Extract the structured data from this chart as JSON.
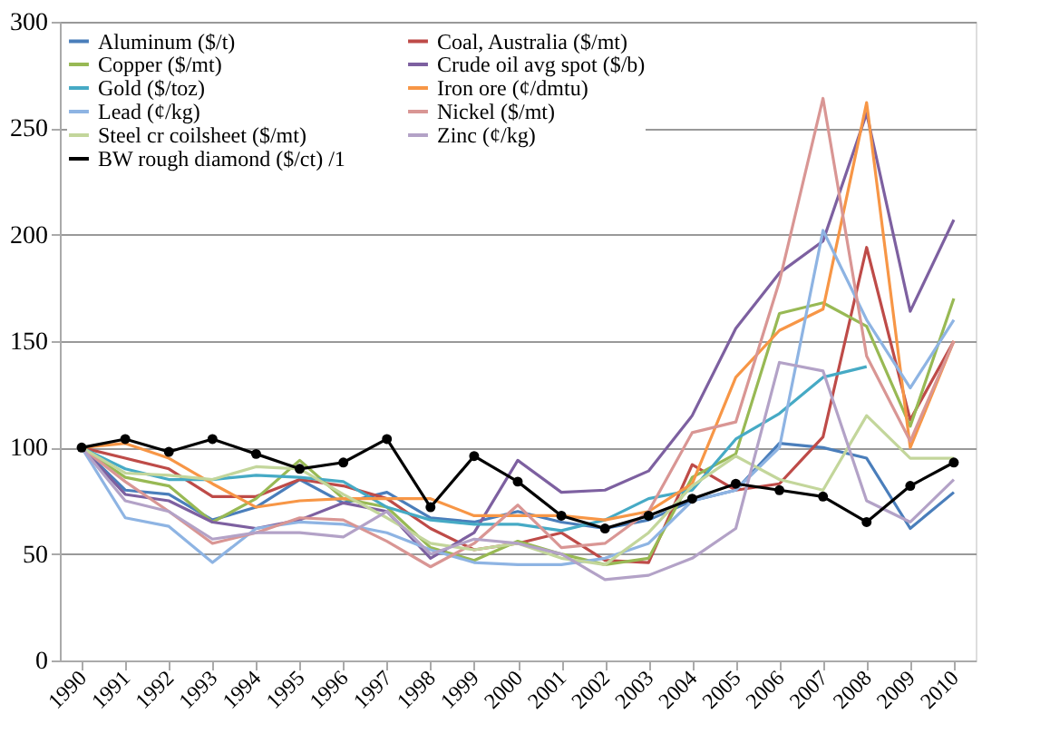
{
  "chart_data": {
    "type": "line",
    "categories": [
      "1990",
      "1991",
      "1992",
      "1993",
      "1994",
      "1995",
      "1996",
      "1997",
      "1998",
      "1999",
      "2000",
      "2001",
      "2002",
      "2003",
      "2004",
      "2005",
      "2006",
      "2007",
      "2008",
      "2009",
      "2010"
    ],
    "ylim": [
      0,
      300
    ],
    "yticks": [
      0,
      50,
      100,
      150,
      200,
      250,
      300
    ],
    "grid": "y",
    "legend": "top left",
    "line_style": "solid",
    "series": [
      {
        "name": "Aluminum ($/t)",
        "color": "#4a7ebb",
        "marker": "none",
        "values": [
          100,
          80,
          78,
          66,
          72,
          85,
          74,
          79,
          67,
          65,
          70,
          65,
          62,
          66,
          75,
          80,
          102,
          100,
          95,
          62,
          79
        ]
      },
      {
        "name": "Coal, Australia ($/mt)",
        "color": "#be4b48",
        "marker": "none",
        "values": [
          100,
          95,
          90,
          77,
          77,
          85,
          82,
          76,
          62,
          52,
          55,
          60,
          47,
          46,
          92,
          80,
          83,
          105,
          194,
          113,
          150
        ]
      },
      {
        "name": "Copper ($/mt)",
        "color": "#98b954",
        "marker": "none",
        "values": [
          100,
          86,
          82,
          65,
          76,
          94,
          76,
          72,
          53,
          47,
          56,
          50,
          45,
          48,
          86,
          97,
          163,
          168,
          157,
          110,
          170
        ]
      },
      {
        "name": "Crude oil avg spot ($/b)",
        "color": "#7d60a0",
        "marker": "none",
        "values": [
          100,
          78,
          75,
          65,
          62,
          66,
          74,
          70,
          48,
          60,
          94,
          79,
          80,
          89,
          115,
          156,
          182,
          197,
          257,
          164,
          207
        ]
      },
      {
        "name": "Gold ($/toz)",
        "color": "#46aac5",
        "marker": "none",
        "values": [
          100,
          90,
          85,
          85,
          87,
          86,
          84,
          72,
          66,
          64,
          64,
          61,
          66,
          76,
          80,
          104,
          116,
          133,
          138,
          null,
          null
        ]
      },
      {
        "name": "Iron ore (¢/dmtu)",
        "color": "#f79646",
        "marker": "none",
        "values": [
          100,
          102,
          95,
          83,
          72,
          75,
          76,
          76,
          76,
          68,
          68,
          68,
          66,
          70,
          83,
          133,
          155,
          165,
          262,
          100,
          150
        ]
      },
      {
        "name": "Lead (¢/kg)",
        "color": "#8eb4e3",
        "marker": "none",
        "values": [
          100,
          67,
          63,
          46,
          62,
          65,
          64,
          60,
          52,
          46,
          45,
          45,
          48,
          55,
          75,
          80,
          100,
          202,
          160,
          128,
          160
        ]
      },
      {
        "name": "Nickel ($/mt)",
        "color": "#d99694",
        "marker": "none",
        "values": [
          100,
          84,
          70,
          55,
          60,
          67,
          66,
          56,
          44,
          55,
          73,
          53,
          55,
          70,
          107,
          112,
          178,
          264,
          143,
          103,
          150
        ]
      },
      {
        "name": "Steel cr coilsheet ($/mt)",
        "color": "#c3d69b",
        "marker": "none",
        "values": [
          100,
          88,
          87,
          85,
          91,
          90,
          78,
          67,
          55,
          52,
          55,
          48,
          45,
          60,
          82,
          96,
          85,
          80,
          115,
          95,
          95
        ]
      },
      {
        "name": "Zinc (¢/kg)",
        "color": "#b3a2c7",
        "marker": "none",
        "values": [
          100,
          75,
          70,
          57,
          60,
          60,
          58,
          70,
          50,
          57,
          55,
          50,
          38,
          40,
          48,
          62,
          140,
          136,
          75,
          65,
          85
        ]
      },
      {
        "name": "BW rough diamond ($/ct) /1",
        "color": "#000000",
        "marker": "circle",
        "values": [
          100,
          104,
          98,
          104,
          97,
          90,
          93,
          104,
          72,
          96,
          84,
          68,
          62,
          68,
          76,
          83,
          80,
          77,
          65,
          82,
          93
        ]
      }
    ]
  }
}
